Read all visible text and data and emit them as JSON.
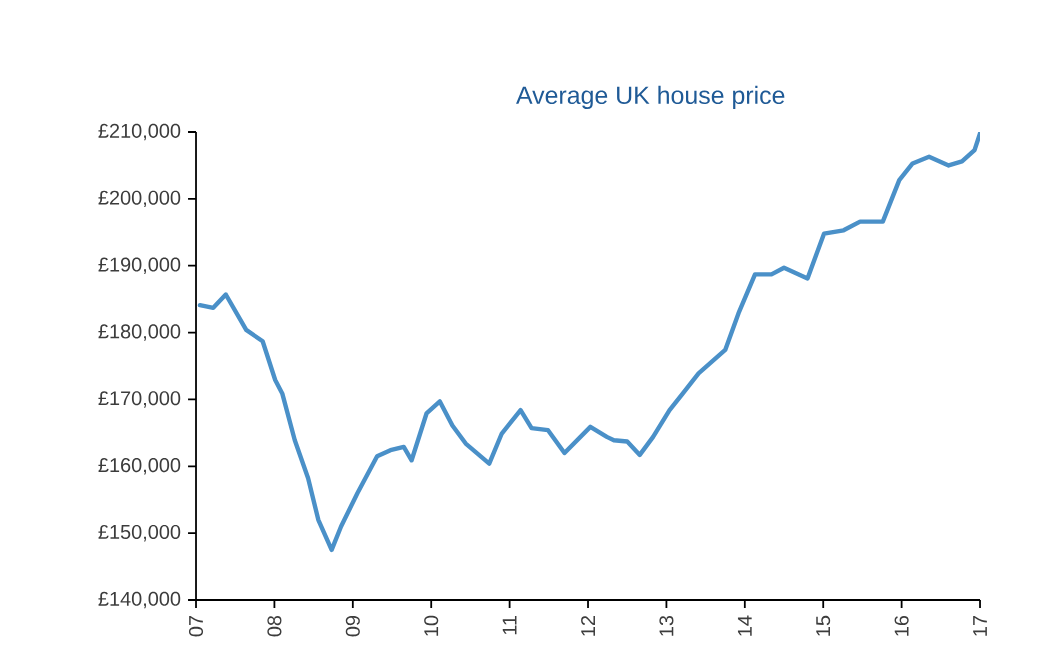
{
  "chart_data": {
    "type": "line",
    "title": "Average UK house price",
    "x": [
      2007.05,
      2007.22,
      2007.38,
      2007.64,
      2007.85,
      2008.01,
      2008.1,
      2008.26,
      2008.43,
      2008.56,
      2008.73,
      2008.85,
      2009.06,
      2009.31,
      2009.48,
      2009.65,
      2009.75,
      2009.94,
      2010.11,
      2010.27,
      2010.44,
      2010.74,
      2010.9,
      2011.14,
      2011.28,
      2011.49,
      2011.7,
      2012.03,
      2012.24,
      2012.33,
      2012.5,
      2012.66,
      2012.83,
      2013.04,
      2013.21,
      2013.41,
      2013.75,
      2013.92,
      2014.13,
      2014.34,
      2014.5,
      2014.8,
      2015.01,
      2015.26,
      2015.47,
      2015.76,
      2015.97,
      2016.14,
      2016.35,
      2016.6,
      2016.77,
      2016.93,
      2017.0
    ],
    "series": [
      {
        "color": "#4a90c8",
        "values": [
          184100,
          183700,
          185700,
          180400,
          178700,
          172900,
          170900,
          163900,
          158200,
          152000,
          147500,
          151000,
          156000,
          161500,
          162400,
          162900,
          160900,
          167900,
          169700,
          166100,
          163400,
          160400,
          164900,
          168400,
          165700,
          165400,
          162000,
          165900,
          164400,
          163900,
          163700,
          161700,
          164400,
          168400,
          170900,
          173900,
          177400,
          182900,
          188700,
          188700,
          189700,
          188100,
          194800,
          195300,
          196600,
          196600,
          202800,
          205300,
          206300,
          205000,
          205600,
          207300,
          209800
        ]
      }
    ],
    "xlim": [
      2007,
      2017
    ],
    "xticks": [
      {
        "value": 2007,
        "label": "07"
      },
      {
        "value": 2008,
        "label": "08"
      },
      {
        "value": 2009,
        "label": "09"
      },
      {
        "value": 2010,
        "label": "10"
      },
      {
        "value": 2011,
        "label": "11"
      },
      {
        "value": 2012,
        "label": "12"
      },
      {
        "value": 2013,
        "label": "13"
      },
      {
        "value": 2014,
        "label": "14"
      },
      {
        "value": 2015,
        "label": "15"
      },
      {
        "value": 2016,
        "label": "16"
      },
      {
        "value": 2017,
        "label": "17"
      }
    ],
    "ylim": [
      140000,
      210000
    ],
    "yticks": [
      {
        "value": 140000,
        "label": "£140,000"
      },
      {
        "value": 150000,
        "label": "£150,000"
      },
      {
        "value": 160000,
        "label": "£160,000"
      },
      {
        "value": 170000,
        "label": "£170,000"
      },
      {
        "value": 180000,
        "label": "£180,000"
      },
      {
        "value": 190000,
        "label": "£190,000"
      },
      {
        "value": 200000,
        "label": "£200,000"
      },
      {
        "value": 210000,
        "label": "£210,000"
      }
    ],
    "grid": false,
    "marker": "none",
    "line_style": "solid"
  }
}
